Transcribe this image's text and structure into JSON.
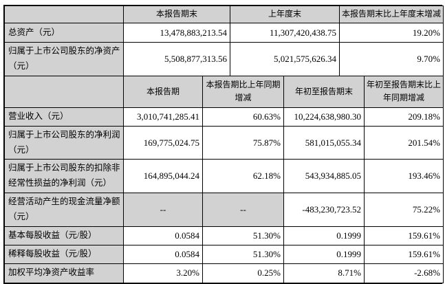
{
  "colors": {
    "cell_grey": "#d2d2d2",
    "border": "#000000",
    "background": "#ffffff"
  },
  "table1": {
    "headers": [
      "",
      "本报告期末",
      "上年度末",
      "本报告期末比上年度末增减"
    ],
    "rows": [
      {
        "label": "总资产（元）",
        "values": [
          "13,478,883,213.54",
          "11,307,420,438.75",
          "19.20%"
        ]
      },
      {
        "label": "归属于上市公司股东的净资产（元）",
        "values": [
          "5,508,877,313.56",
          "5,021,575,626.34",
          "9.70%"
        ]
      }
    ]
  },
  "table2": {
    "headers": [
      "",
      "本报告期",
      "本报告期比上年同期增减",
      "年初至报告期末",
      "年初至报告期末比上年同期增减"
    ],
    "rows": [
      {
        "label": "营业收入（元）",
        "values": [
          "3,010,741,285.41",
          "60.63%",
          "10,224,638,980.30",
          "209.18%"
        ]
      },
      {
        "label": "归属于上市公司股东的净利润（元）",
        "values": [
          "169,775,024.75",
          "75.87%",
          "581,015,055.34",
          "201.54%"
        ]
      },
      {
        "label": "归属于上市公司股东的扣除非经常性损益的净利润（元）",
        "values": [
          "164,895,044.24",
          "62.18%",
          "543,934,885.05",
          "193.46%"
        ]
      },
      {
        "label": "经营活动产生的现金流量净额（元）",
        "values": [
          "--",
          "--",
          "-483,230,723.52",
          "75.22%"
        ],
        "muted": [
          0,
          1
        ]
      },
      {
        "label": "基本每股收益（元/股）",
        "values": [
          "0.0584",
          "51.30%",
          "0.1999",
          "159.61%"
        ]
      },
      {
        "label": "稀释每股收益（元/股）",
        "values": [
          "0.0584",
          "51.30%",
          "0.1999",
          "159.61%"
        ]
      },
      {
        "label": "加权平均净资产收益率",
        "values": [
          "3.20%",
          "0.25%",
          "8.71%",
          "-2.68%"
        ]
      }
    ]
  }
}
